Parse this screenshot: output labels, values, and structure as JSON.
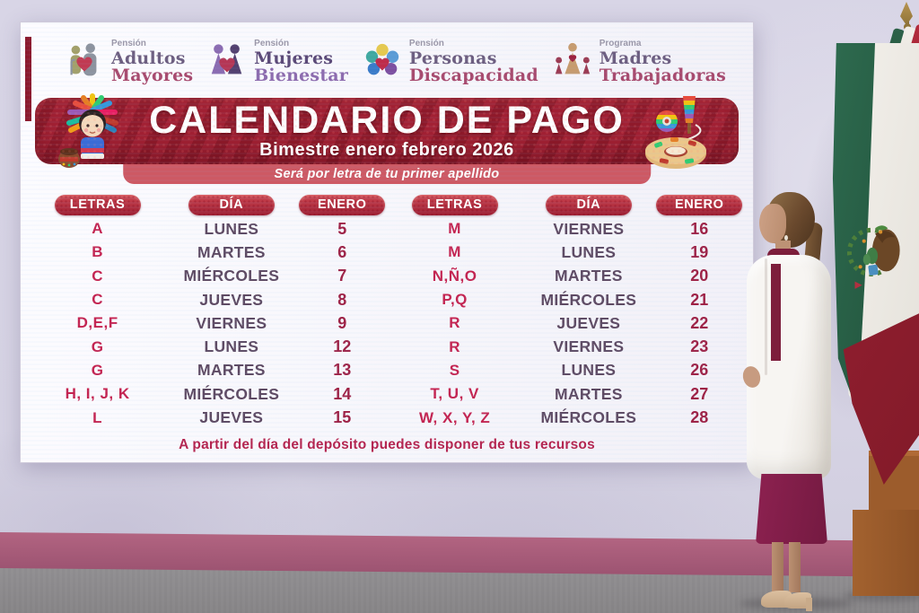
{
  "programs": [
    {
      "label": "Pensión",
      "line1": "Adultos",
      "line2": "Mayores",
      "icon": "elderly-couple-icon"
    },
    {
      "label": "Pensión",
      "line1": "Mujeres",
      "line2": "Bienestar",
      "icon": "two-women-icon"
    },
    {
      "label": "Pensión",
      "line1": "Personas",
      "line2": "Discapacidad",
      "icon": "inclusion-circles-icon"
    },
    {
      "label": "Programa",
      "line1": "Madres",
      "line2": "Trabajadoras",
      "icon": "mother-children-icon"
    }
  ],
  "banner": {
    "title": "CALENDARIO DE PAGO",
    "subtitle": "Bimestre enero febrero 2026",
    "note": "Será por letra de tu primer apellido"
  },
  "calendar": {
    "headers": [
      "LETRAS",
      "DÍA",
      "ENERO"
    ],
    "left_rows": [
      {
        "letters": "A",
        "day": "LUNES",
        "date": "5"
      },
      {
        "letters": "B",
        "day": "MARTES",
        "date": "6"
      },
      {
        "letters": "C",
        "day": "MIÉRCOLES",
        "date": "7"
      },
      {
        "letters": "C",
        "day": "JUEVES",
        "date": "8"
      },
      {
        "letters": "D,E,F",
        "day": "VIERNES",
        "date": "9"
      },
      {
        "letters": "G",
        "day": "LUNES",
        "date": "12"
      },
      {
        "letters": "G",
        "day": "MARTES",
        "date": "13"
      },
      {
        "letters": "H, I, J, K",
        "day": "MIÉRCOLES",
        "date": "14"
      },
      {
        "letters": "L",
        "day": "JUEVES",
        "date": "15"
      }
    ],
    "right_rows": [
      {
        "letters": "M",
        "day": "VIERNES",
        "date": "16"
      },
      {
        "letters": "M",
        "day": "LUNES",
        "date": "19"
      },
      {
        "letters": "N,Ñ,O",
        "day": "MARTES",
        "date": "20"
      },
      {
        "letters": "P,Q",
        "day": "MIÉRCOLES",
        "date": "21"
      },
      {
        "letters": "R",
        "day": "JUEVES",
        "date": "22"
      },
      {
        "letters": "R",
        "day": "VIERNES",
        "date": "23"
      },
      {
        "letters": "S",
        "day": "LUNES",
        "date": "26"
      },
      {
        "letters": "T, U, V",
        "day": "MARTES",
        "date": "27"
      },
      {
        "letters": "W, X, Y, Z",
        "day": "MIÉRCOLES",
        "date": "28"
      }
    ]
  },
  "footer": {
    "note": "A partir del día del depósito puedes disponer de tus recursos"
  },
  "colors": {
    "banner_red": "#9c1c30",
    "note_strip_red": "#cd5964",
    "letters_text": "#c42350",
    "day_text": "#5e4a63",
    "date_text": "#9e2145",
    "footer_text": "#b4244f",
    "wall_lavender": "#d7d4e5",
    "wall_stripe_mauve": "#ab5d7b",
    "floor_gray": "#8c8a8d",
    "flag_green": "#2e6b4f",
    "flag_red": "#9a2133",
    "fringe_gold": "#d4ab4e",
    "coat_white": "#f7f5f2",
    "dress_maroon": "#8d2150",
    "podium_wood": "#9c5c2c"
  }
}
